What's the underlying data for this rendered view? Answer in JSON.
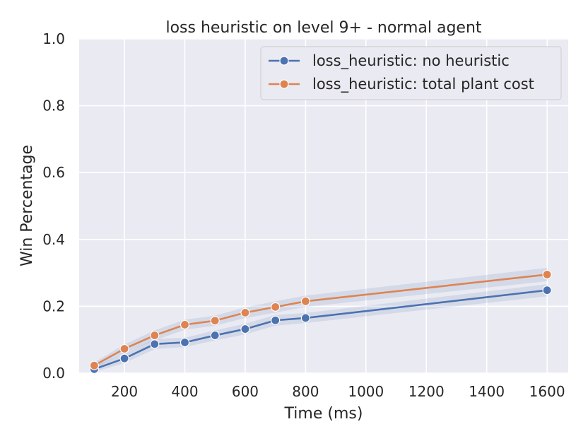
{
  "chart_data": {
    "type": "line",
    "title": "loss heuristic on level 9+ - normal agent",
    "xlabel": "Time (ms)",
    "ylabel": "Win Percentage",
    "xlim": [
      50,
      1670
    ],
    "ylim": [
      0,
      1.0
    ],
    "xticks": [
      200,
      400,
      600,
      800,
      1000,
      1200,
      1400,
      1600
    ],
    "yticks": [
      0.0,
      0.2,
      0.4,
      0.6,
      0.8,
      1.0
    ],
    "xtick_labels": [
      "200",
      "400",
      "600",
      "800",
      "1000",
      "1200",
      "1400",
      "1600"
    ],
    "ytick_labels": [
      "0.0",
      "0.2",
      "0.4",
      "0.6",
      "0.8",
      "1.0"
    ],
    "grid": true,
    "legend_position": "top-right",
    "series": [
      {
        "name": "loss_heuristic: no heuristic",
        "color": "#4c72b0",
        "x": [
          100,
          200,
          300,
          400,
          500,
          600,
          700,
          800,
          1600
        ],
        "y": [
          0.012,
          0.044,
          0.087,
          0.092,
          0.113,
          0.132,
          0.158,
          0.165,
          0.248
        ],
        "y_lower": [
          0.004,
          0.03,
          0.072,
          0.078,
          0.098,
          0.116,
          0.142,
          0.15,
          0.23
        ],
        "y_upper": [
          0.02,
          0.058,
          0.102,
          0.106,
          0.128,
          0.148,
          0.174,
          0.18,
          0.266
        ]
      },
      {
        "name": "loss_heuristic: total plant cost",
        "color": "#dd8452",
        "x": [
          100,
          200,
          300,
          400,
          500,
          600,
          700,
          800,
          1600
        ],
        "y": [
          0.023,
          0.073,
          0.113,
          0.145,
          0.157,
          0.181,
          0.198,
          0.215,
          0.295
        ],
        "y_lower": [
          0.014,
          0.06,
          0.098,
          0.13,
          0.142,
          0.165,
          0.181,
          0.198,
          0.275
        ],
        "y_upper": [
          0.032,
          0.086,
          0.128,
          0.16,
          0.172,
          0.197,
          0.215,
          0.232,
          0.315
        ]
      }
    ]
  }
}
